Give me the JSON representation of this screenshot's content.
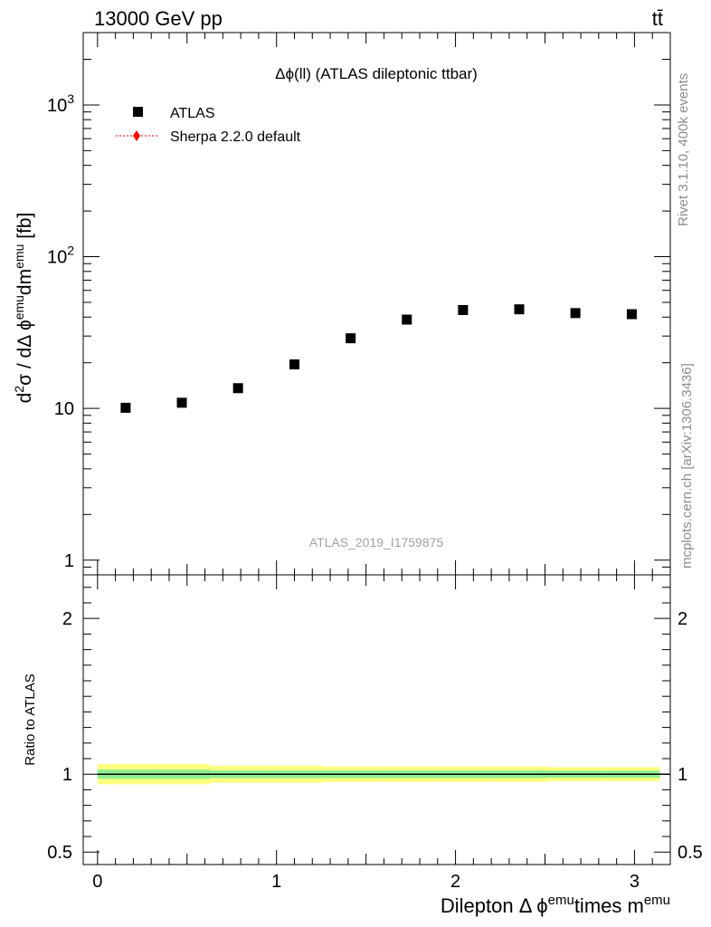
{
  "header": {
    "energy_label": "13000 GeV pp",
    "process_label": "tt̄"
  },
  "side_labels": {
    "rivet": "Rivet 3.1.10,  400k events",
    "source": "mcplots.cern.ch [arXiv:1306.3436]"
  },
  "watermark": "ATLAS_2019_I1759875",
  "chart_data": [
    {
      "type": "scatter",
      "panel": "main",
      "title": "Δϕ(ll) (ATLAS dileptonic ttbar)",
      "ylabel": "d²σ / dΔ ϕ^emu dm^emu [fb]",
      "yscale": "log",
      "ylim": [
        0.8,
        3000
      ],
      "xlim": [
        -0.08,
        3.2
      ],
      "y_ticks": [
        {
          "value": 1,
          "label": "1"
        },
        {
          "value": 10,
          "label": "10"
        },
        {
          "value": 100,
          "label": "10²"
        },
        {
          "value": 1000,
          "label": "10³"
        }
      ],
      "legend": {
        "placement": "top-left"
      },
      "series": [
        {
          "name": "ATLAS",
          "color": "#000000",
          "marker": "square",
          "x": [
            0.157,
            0.471,
            0.785,
            1.1,
            1.414,
            1.728,
            2.042,
            2.356,
            2.67,
            2.985
          ],
          "y": [
            10.1,
            10.9,
            13.6,
            19.5,
            29.0,
            38.5,
            44.5,
            45.0,
            42.5,
            41.8
          ]
        },
        {
          "name": "Sherpa 2.2.0 default",
          "color": "#ff0000",
          "marker": "diamond",
          "x": [],
          "y": []
        }
      ]
    },
    {
      "type": "line",
      "panel": "ratio",
      "ylabel": "Ratio to ATLAS",
      "ylim": [
        0.42,
        2.28
      ],
      "xlim": [
        -0.08,
        3.2
      ],
      "y_ticks": [
        {
          "value": 0.5,
          "label": "0.5"
        },
        {
          "value": 1,
          "label": "1"
        },
        {
          "value": 2,
          "label": "2"
        }
      ],
      "x_ticks": [
        {
          "value": 0,
          "label": "0"
        },
        {
          "value": 1,
          "label": "1"
        },
        {
          "value": 2,
          "label": "2"
        },
        {
          "value": 3,
          "label": "3"
        }
      ],
      "xlabel": "Dilepton Δ ϕ^emu times m^emu",
      "bin_edges": [
        0,
        0.314,
        0.628,
        0.942,
        1.257,
        1.571,
        1.885,
        2.199,
        2.513,
        2.827,
        3.142
      ],
      "band_yellow": {
        "lo": [
          0.935,
          0.935,
          0.945,
          0.945,
          0.95,
          0.95,
          0.95,
          0.95,
          0.955,
          0.955
        ],
        "hi": [
          1.065,
          1.065,
          1.055,
          1.055,
          1.05,
          1.05,
          1.05,
          1.05,
          1.045,
          1.045
        ]
      },
      "band_green": {
        "lo": [
          0.97,
          0.97,
          0.975,
          0.975,
          0.975,
          0.975,
          0.975,
          0.975,
          0.977,
          0.977
        ],
        "hi": [
          1.03,
          1.03,
          1.025,
          1.025,
          1.025,
          1.025,
          1.025,
          1.025,
          1.023,
          1.023
        ]
      },
      "reference_value": 1,
      "colors": {
        "yellow": "#ffff80",
        "green": "#8ff08f"
      }
    }
  ]
}
